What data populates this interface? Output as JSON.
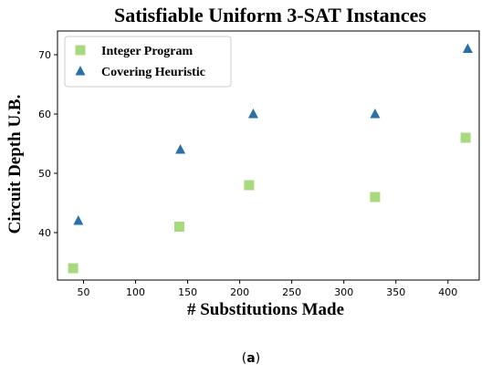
{
  "caption": {
    "open": "(",
    "letter": "a",
    "close": ")"
  },
  "chart_data": {
    "type": "scatter",
    "title": "Satisfiable Uniform 3-SAT Instances",
    "xlabel": "# Substitutions Made",
    "ylabel": "Circuit Depth U.B.",
    "xlim": [
      25,
      430
    ],
    "ylim": [
      32,
      74
    ],
    "xticks": [
      50,
      100,
      150,
      200,
      250,
      300,
      350,
      400
    ],
    "yticks": [
      40,
      50,
      60,
      70
    ],
    "grid": false,
    "legend_position": "top-left",
    "series": [
      {
        "name": "Integer Program",
        "marker": "square",
        "color": "#a8d97f",
        "points": [
          [
            40,
            34
          ],
          [
            142,
            41
          ],
          [
            209,
            48
          ],
          [
            330,
            46
          ],
          [
            417,
            56
          ]
        ]
      },
      {
        "name": "Covering Heuristic",
        "marker": "triangle",
        "color": "#2b6fa8",
        "points": [
          [
            45,
            42
          ],
          [
            143,
            54
          ],
          [
            213,
            60
          ],
          [
            330,
            60
          ],
          [
            419,
            71
          ]
        ]
      }
    ]
  }
}
